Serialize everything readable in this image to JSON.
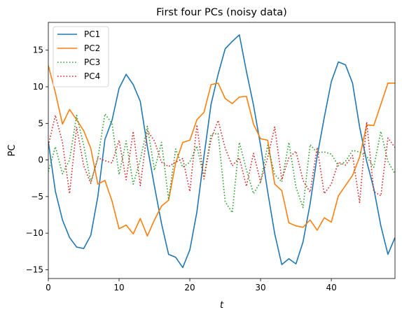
{
  "chart_data": {
    "type": "line",
    "title": "First four PCs (noisy data)",
    "xlabel": "t",
    "ylabel": "PC",
    "xlim": [
      0,
      49
    ],
    "ylim": [
      -16.2,
      18.8
    ],
    "xticks": [
      0,
      10,
      20,
      30,
      40
    ],
    "yticks": [
      -15,
      -10,
      -5,
      0,
      5,
      10,
      15
    ],
    "grid": false,
    "legend": "upper-left",
    "series": [
      {
        "name": "PC1",
        "color": "#1f77b4",
        "style": "solid",
        "values": [
          2.5,
          -4.3,
          -8.2,
          -10.6,
          -11.9,
          -12.1,
          -10.3,
          -5.0,
          2.8,
          5.4,
          9.8,
          11.7,
          10.3,
          8.0,
          1.8,
          -3.6,
          -8.7,
          -12.9,
          -13.3,
          -14.7,
          -12.3,
          -7.1,
          0.5,
          7.6,
          11.7,
          15.2,
          16.2,
          17.1,
          12.1,
          7.5,
          2.0,
          -4.3,
          -10.1,
          -14.3,
          -13.5,
          -14.2,
          -11.2,
          -6.0,
          0.5,
          5.8,
          10.7,
          13.4,
          13.0,
          10.5,
          4.5,
          -0.2,
          -3.9,
          -9.0,
          -12.9,
          -10.6
        ]
      },
      {
        "name": "PC2",
        "color": "#ff7f0e",
        "style": "solid",
        "values": [
          12.9,
          9.2,
          4.9,
          6.9,
          5.5,
          4.0,
          1.6,
          -3.3,
          -2.8,
          -5.6,
          -9.4,
          -8.9,
          -10.1,
          -8.0,
          -10.4,
          -8.2,
          -6.3,
          -5.5,
          -0.4,
          2.4,
          2.7,
          5.5,
          6.5,
          10.3,
          10.5,
          8.4,
          7.7,
          8.6,
          8.7,
          4.9,
          2.9,
          2.7,
          -3.3,
          -4.2,
          -8.6,
          -9.0,
          -9.2,
          -8.2,
          -9.6,
          -7.9,
          -8.5,
          -4.9,
          -3.5,
          -2.1,
          0.4,
          4.8,
          4.7,
          7.6,
          10.5,
          10.5
        ]
      },
      {
        "name": "PC3",
        "color": "#2ca02c",
        "style": "dotted",
        "values": [
          -1.6,
          1.8,
          -1.9,
          0.0,
          6.1,
          2.0,
          -3.0,
          0.2,
          6.3,
          5.0,
          -2.0,
          2.6,
          -3.3,
          0.0,
          4.6,
          -1.4,
          2.4,
          -5.4,
          1.5,
          -1.0,
          -0.3,
          1.9,
          -2.4,
          3.5,
          3.6,
          -5.7,
          -7.2,
          2.4,
          -1.3,
          -4.6,
          -3.0,
          2.0,
          -2.0,
          -3.0,
          2.4,
          -3.7,
          -6.5,
          2.1,
          1.0,
          1.1,
          0.8,
          -0.8,
          -0.2,
          1.3,
          1.1,
          0.5,
          -1.0,
          3.9,
          -0.2,
          -1.9
        ]
      },
      {
        "name": "PC4",
        "color": "#d62728",
        "style": "dotted",
        "values": [
          2.0,
          6.1,
          2.4,
          -4.6,
          4.5,
          -0.8,
          -3.2,
          0.3,
          -0.1,
          -0.4,
          2.7,
          -2.7,
          3.9,
          -3.5,
          4.0,
          2.6,
          -0.3,
          -0.9,
          -0.3,
          0.2,
          -4.3,
          4.8,
          -2.6,
          2.8,
          5.4,
          1.6,
          -0.8,
          0.3,
          -3.6,
          0.9,
          -3.0,
          0.3,
          4.5,
          -2.7,
          0.3,
          1.2,
          -2.8,
          -4.4,
          1.7,
          -4.6,
          -3.3,
          -0.3,
          -0.7,
          0.6,
          -5.8,
          5.2,
          -4.3,
          -4.9,
          3.0,
          1.7
        ]
      }
    ]
  }
}
